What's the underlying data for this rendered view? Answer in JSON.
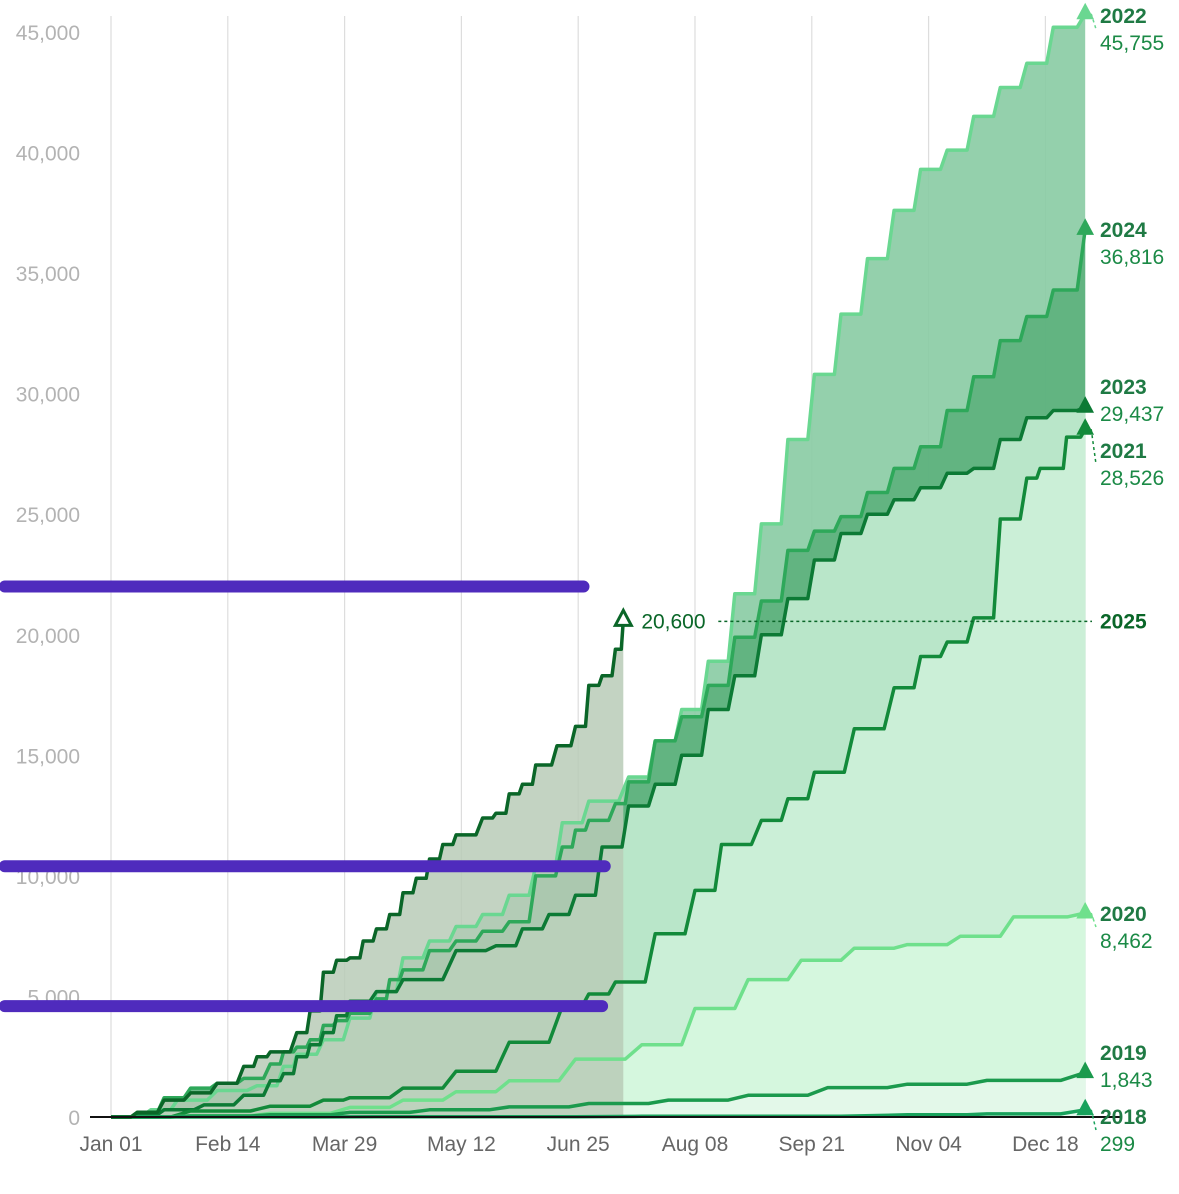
{
  "chart_data": {
    "type": "area",
    "xlabel": "",
    "ylabel": "",
    "ylim": [
      0,
      45000
    ],
    "y_ticks": [
      "0",
      "5,000",
      "10,000",
      "15,000",
      "20,000",
      "25,000",
      "30,000",
      "35,000",
      "40,000",
      "45,000"
    ],
    "y_tick_values": [
      0,
      5000,
      10000,
      15000,
      20000,
      25000,
      30000,
      35000,
      40000,
      45000
    ],
    "x_ticks": [
      "Jan 01",
      "Feb 14",
      "Mar 29",
      "May 12",
      "Jun 25",
      "Aug 08",
      "Sep 21",
      "Nov 04",
      "Dec 18"
    ],
    "x_tick_days": [
      0,
      44,
      88,
      132,
      176,
      220,
      264,
      308,
      352
    ],
    "grid": true,
    "series": [
      {
        "name": "2018",
        "label": "2018",
        "value_label": "299",
        "final": 299,
        "color": "#18a25c",
        "fill": "#e5f9ef",
        "points": [
          [
            0,
            0
          ],
          [
            100,
            10
          ],
          [
            200,
            30
          ],
          [
            300,
            90
          ],
          [
            330,
            130
          ],
          [
            367,
            299
          ]
        ]
      },
      {
        "name": "2019",
        "label": "2019",
        "value_label": "1,843",
        "final": 1843,
        "color": "#1b9a4d",
        "fill": "#e4f7ea",
        "points": [
          [
            0,
            0
          ],
          [
            30,
            40
          ],
          [
            60,
            90
          ],
          [
            90,
            190
          ],
          [
            120,
            300
          ],
          [
            150,
            420
          ],
          [
            180,
            560
          ],
          [
            210,
            700
          ],
          [
            240,
            900
          ],
          [
            270,
            1220
          ],
          [
            300,
            1360
          ],
          [
            330,
            1520
          ],
          [
            367,
            1843
          ]
        ]
      },
      {
        "name": "2020",
        "label": "2020",
        "value_label": "8,462",
        "final": 8462,
        "color": "#6fe08c",
        "fill": "#d6f7df",
        "points": [
          [
            0,
            0
          ],
          [
            30,
            50
          ],
          [
            60,
            150
          ],
          [
            90,
            400
          ],
          [
            110,
            700
          ],
          [
            130,
            1050
          ],
          [
            150,
            1500
          ],
          [
            175,
            2400
          ],
          [
            200,
            3000
          ],
          [
            220,
            4500
          ],
          [
            240,
            5700
          ],
          [
            260,
            6500
          ],
          [
            280,
            7000
          ],
          [
            300,
            7150
          ],
          [
            320,
            7500
          ],
          [
            340,
            8300
          ],
          [
            367,
            8462
          ]
        ]
      },
      {
        "name": "2021",
        "label": "2021",
        "value_label": "28,526",
        "final": 28526,
        "color": "#128a3a",
        "fill": "#cdf0d8",
        "points": [
          [
            0,
            0
          ],
          [
            30,
            250
          ],
          [
            60,
            450
          ],
          [
            80,
            700
          ],
          [
            90,
            800
          ],
          [
            110,
            1200
          ],
          [
            130,
            1900
          ],
          [
            150,
            3100
          ],
          [
            170,
            4600
          ],
          [
            180,
            5100
          ],
          [
            190,
            5600
          ],
          [
            205,
            7600
          ],
          [
            220,
            9400
          ],
          [
            230,
            11300
          ],
          [
            245,
            12300
          ],
          [
            255,
            13200
          ],
          [
            265,
            14300
          ],
          [
            280,
            16100
          ],
          [
            295,
            17800
          ],
          [
            305,
            19100
          ],
          [
            315,
            19700
          ],
          [
            325,
            20700
          ],
          [
            335,
            24800
          ],
          [
            345,
            26500
          ],
          [
            350,
            26900
          ],
          [
            355,
            26900
          ],
          [
            360,
            28200
          ],
          [
            367,
            28526
          ]
        ]
      },
      {
        "name": "2023",
        "label": "2023",
        "value_label": "29,437",
        "final": 29437,
        "color": "#0c7a35",
        "fill": "#c3ebd0",
        "points": [
          [
            0,
            0
          ],
          [
            10,
            100
          ],
          [
            20,
            300
          ],
          [
            35,
            500
          ],
          [
            50,
            900
          ],
          [
            60,
            1500
          ],
          [
            65,
            1800
          ],
          [
            70,
            2500
          ],
          [
            75,
            3000
          ],
          [
            80,
            3500
          ],
          [
            85,
            4200
          ],
          [
            90,
            4800
          ],
          [
            100,
            5200
          ],
          [
            110,
            5700
          ],
          [
            130,
            6900
          ],
          [
            145,
            7100
          ],
          [
            155,
            7800
          ],
          [
            165,
            8400
          ],
          [
            175,
            9200
          ],
          [
            185,
            11200
          ],
          [
            195,
            12900
          ],
          [
            205,
            13800
          ],
          [
            215,
            15000
          ],
          [
            225,
            16900
          ],
          [
            235,
            18300
          ],
          [
            245,
            20000
          ],
          [
            255,
            21500
          ],
          [
            265,
            23100
          ],
          [
            275,
            24200
          ],
          [
            285,
            25000
          ],
          [
            295,
            25600
          ],
          [
            305,
            26100
          ],
          [
            315,
            26700
          ],
          [
            325,
            26900
          ],
          [
            335,
            28100
          ],
          [
            345,
            29000
          ],
          [
            355,
            29300
          ],
          [
            367,
            29437
          ]
        ]
      },
      {
        "name": "2024",
        "label": "2024",
        "value_label": "36,816",
        "final": 36816,
        "color": "#2ea85a",
        "fill": "#5cb07c",
        "points": [
          [
            0,
            0
          ],
          [
            10,
            200
          ],
          [
            20,
            800
          ],
          [
            30,
            1200
          ],
          [
            40,
            1400
          ],
          [
            50,
            1600
          ],
          [
            60,
            2200
          ],
          [
            65,
            2700
          ],
          [
            70,
            2900
          ],
          [
            75,
            3200
          ],
          [
            80,
            3800
          ],
          [
            85,
            4000
          ],
          [
            90,
            4300
          ],
          [
            100,
            4900
          ],
          [
            105,
            5700
          ],
          [
            110,
            6100
          ],
          [
            120,
            6900
          ],
          [
            130,
            7300
          ],
          [
            140,
            7700
          ],
          [
            150,
            8100
          ],
          [
            160,
            10000
          ],
          [
            170,
            11200
          ],
          [
            175,
            11900
          ],
          [
            180,
            12300
          ],
          [
            190,
            13000
          ],
          [
            195,
            13900
          ],
          [
            205,
            15600
          ],
          [
            215,
            16600
          ],
          [
            225,
            17900
          ],
          [
            235,
            19900
          ],
          [
            245,
            21400
          ],
          [
            255,
            23500
          ],
          [
            265,
            24300
          ],
          [
            275,
            24900
          ],
          [
            285,
            25900
          ],
          [
            295,
            26900
          ],
          [
            305,
            27800
          ],
          [
            315,
            29300
          ],
          [
            325,
            30700
          ],
          [
            335,
            32200
          ],
          [
            345,
            33200
          ],
          [
            355,
            34300
          ],
          [
            367,
            36816
          ]
        ]
      },
      {
        "name": "2022",
        "label": "2022",
        "value_label": "45,755",
        "final": 45755,
        "color": "#6ad791",
        "fill": "#88cba3",
        "points": [
          [
            0,
            0
          ],
          [
            15,
            300
          ],
          [
            25,
            700
          ],
          [
            40,
            1100
          ],
          [
            55,
            1300
          ],
          [
            65,
            2100
          ],
          [
            70,
            2600
          ],
          [
            80,
            3200
          ],
          [
            90,
            4100
          ],
          [
            100,
            5200
          ],
          [
            110,
            6600
          ],
          [
            120,
            7300
          ],
          [
            130,
            7900
          ],
          [
            140,
            8400
          ],
          [
            150,
            9200
          ],
          [
            160,
            10400
          ],
          [
            170,
            12200
          ],
          [
            180,
            13100
          ],
          [
            195,
            14100
          ],
          [
            205,
            15600
          ],
          [
            215,
            16900
          ],
          [
            225,
            18900
          ],
          [
            235,
            21700
          ],
          [
            245,
            24600
          ],
          [
            255,
            28100
          ],
          [
            265,
            30800
          ],
          [
            275,
            33300
          ],
          [
            285,
            35600
          ],
          [
            295,
            37600
          ],
          [
            305,
            39300
          ],
          [
            315,
            40100
          ],
          [
            325,
            41500
          ],
          [
            335,
            42700
          ],
          [
            345,
            43700
          ],
          [
            355,
            45200
          ],
          [
            367,
            45755
          ]
        ]
      },
      {
        "name": "2025",
        "label": "2025",
        "value_label": "20,600",
        "final": 20600,
        "color": "#0a6628",
        "fill": "#b8cbb7",
        "points": [
          [
            0,
            0
          ],
          [
            10,
            200
          ],
          [
            20,
            700
          ],
          [
            30,
            1000
          ],
          [
            40,
            1400
          ],
          [
            50,
            2100
          ],
          [
            55,
            2500
          ],
          [
            60,
            2700
          ],
          [
            70,
            3500
          ],
          [
            75,
            4400
          ],
          [
            80,
            6000
          ],
          [
            85,
            6500
          ],
          [
            90,
            6600
          ],
          [
            95,
            7300
          ],
          [
            100,
            7800
          ],
          [
            105,
            8400
          ],
          [
            110,
            9300
          ],
          [
            115,
            9900
          ],
          [
            120,
            10700
          ],
          [
            125,
            11300
          ],
          [
            130,
            11700
          ],
          [
            140,
            12400
          ],
          [
            145,
            12600
          ],
          [
            150,
            13400
          ],
          [
            155,
            13800
          ],
          [
            160,
            14600
          ],
          [
            168,
            15400
          ],
          [
            175,
            16200
          ],
          [
            180,
            17900
          ],
          [
            185,
            18300
          ],
          [
            190,
            19400
          ],
          [
            193,
            20600
          ]
        ]
      }
    ],
    "annotation": {
      "label": "20,600",
      "series": "2025"
    },
    "overlays": [
      {
        "name": "overlay-bar-upper",
        "y": 22000,
        "x0": -40,
        "x1": 178
      },
      {
        "name": "overlay-bar-middle",
        "y": 10400,
        "x0": -40,
        "x1": 186
      },
      {
        "name": "overlay-bar-lower",
        "y": 4600,
        "x0": -40,
        "x1": 185
      }
    ],
    "overlay_color": "#4f2bbd"
  }
}
